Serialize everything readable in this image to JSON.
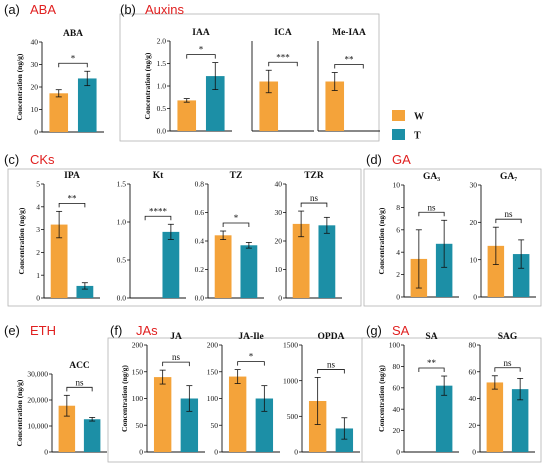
{
  "colors": {
    "W": "#f4a33a",
    "T": "#1c8fa6",
    "title_red": "#e02020",
    "axis": "#111111"
  },
  "legend": [
    {
      "key": "W",
      "label": "W"
    },
    {
      "key": "T",
      "label": "T"
    }
  ],
  "y_axis_label": "Concentration (ng/g)",
  "panels": [
    {
      "id": "a",
      "label": "(a)",
      "title": "ABA"
    },
    {
      "id": "b",
      "label": "(b)",
      "title": "Auxins"
    },
    {
      "id": "c",
      "label": "(c)",
      "title": "CKs"
    },
    {
      "id": "d",
      "label": "(d)",
      "title": "GA"
    },
    {
      "id": "e",
      "label": "(e)",
      "title": "ETH"
    },
    {
      "id": "f",
      "label": "(f)",
      "title": "JAs"
    },
    {
      "id": "g",
      "label": "(g)",
      "title": "SA"
    }
  ],
  "chart_data": [
    {
      "type": "bar",
      "panel": "a",
      "title": "ABA",
      "show_ylabel": true,
      "ylim": [
        0,
        40
      ],
      "yticks": [
        "0",
        "10",
        "20",
        "30",
        "40"
      ],
      "categories": [
        "W",
        "T"
      ],
      "values": [
        17.2,
        23.8
      ],
      "errors": [
        1.6,
        3.2
      ],
      "sig": "*"
    },
    {
      "type": "bar",
      "panel": "b",
      "title": "IAA",
      "show_ylabel": true,
      "ylim": [
        0,
        2.0
      ],
      "yticks": [
        "0.0",
        "0.5",
        "1.0",
        "1.5",
        "2.0"
      ],
      "categories": [
        "W",
        "T"
      ],
      "values": [
        0.68,
        1.22
      ],
      "errors": [
        0.04,
        0.3
      ],
      "sig": "*"
    },
    {
      "type": "bar",
      "panel": "b",
      "title": "ICA",
      "show_ylabel": false,
      "ylim": [
        0,
        8
      ],
      "yticks": [],
      "categories": [
        "W",
        "T"
      ],
      "values": [
        4.4,
        0
      ],
      "errors": [
        1.0,
        0
      ],
      "sig": "***"
    },
    {
      "type": "bar",
      "panel": "b",
      "title": "Me-IAA",
      "show_ylabel": false,
      "ylim": [
        0,
        0.6
      ],
      "yticks": [],
      "categories": [
        "W",
        "T"
      ],
      "values": [
        0.33,
        0
      ],
      "errors": [
        0.06,
        0
      ],
      "sig": "**"
    },
    {
      "type": "bar",
      "panel": "c",
      "title": "IPA",
      "show_ylabel": true,
      "ylim": [
        0,
        5
      ],
      "yticks": [
        "0",
        "1",
        "2",
        "3",
        "4",
        "5"
      ],
      "categories": [
        "W",
        "T"
      ],
      "values": [
        3.22,
        0.53
      ],
      "errors": [
        0.58,
        0.14
      ],
      "sig": "**"
    },
    {
      "type": "bar",
      "panel": "c",
      "title": "Kt",
      "show_ylabel": false,
      "ylim": [
        0,
        1.5
      ],
      "yticks": [
        "0.0",
        "0.5",
        "1.0",
        "1.5"
      ],
      "categories": [
        "W",
        "T"
      ],
      "values": [
        0,
        0.87
      ],
      "errors": [
        0,
        0.1
      ],
      "sig": "****"
    },
    {
      "type": "bar",
      "panel": "c",
      "title": "TZ",
      "show_ylabel": false,
      "ylim": [
        0,
        0.8
      ],
      "yticks": [
        "0.0",
        "0.2",
        "0.4",
        "0.6",
        "0.8"
      ],
      "categories": [
        "W",
        "T"
      ],
      "values": [
        0.44,
        0.37
      ],
      "errors": [
        0.03,
        0.02
      ],
      "sig": "*"
    },
    {
      "type": "bar",
      "panel": "c",
      "title": "TZR",
      "show_ylabel": false,
      "ylim": [
        0,
        40
      ],
      "yticks": [
        "0",
        "10",
        "20",
        "30",
        "40"
      ],
      "categories": [
        "W",
        "T"
      ],
      "values": [
        26,
        25.5
      ],
      "errors": [
        4.5,
        2.8
      ],
      "sig": "ns"
    },
    {
      "type": "bar",
      "panel": "d",
      "title": "GA₃",
      "show_ylabel": true,
      "ylim": [
        0,
        10
      ],
      "yticks": [
        "0",
        "2",
        "4",
        "6",
        "8",
        "10"
      ],
      "categories": [
        "W",
        "T"
      ],
      "values": [
        3.4,
        4.75
      ],
      "errors": [
        2.6,
        2.1
      ],
      "sig": "ns"
    },
    {
      "type": "bar",
      "panel": "d",
      "title": "GA₇",
      "show_ylabel": false,
      "ylim": [
        0,
        30
      ],
      "yticks": [
        "0",
        "10",
        "20",
        "30"
      ],
      "categories": [
        "W",
        "T"
      ],
      "values": [
        13.7,
        11.5
      ],
      "errors": [
        5.0,
        3.8
      ],
      "sig": "ns"
    },
    {
      "type": "bar",
      "panel": "e",
      "title": "ACC",
      "show_ylabel": true,
      "ylim": [
        0,
        30000
      ],
      "yticks": [
        "0",
        "10,000",
        "20,000",
        "30,000"
      ],
      "categories": [
        "W",
        "T"
      ],
      "values": [
        17800,
        12600
      ],
      "errors": [
        4000,
        700
      ],
      "sig": "ns"
    },
    {
      "type": "bar",
      "panel": "f",
      "title": "JA",
      "show_ylabel": true,
      "ylim": [
        0,
        200
      ],
      "yticks": [
        "0",
        "50",
        "100",
        "150",
        "200"
      ],
      "categories": [
        "W",
        "T"
      ],
      "values": [
        140,
        100
      ],
      "errors": [
        13,
        24
      ],
      "sig": "ns"
    },
    {
      "type": "bar",
      "panel": "f",
      "title": "JA-Ile",
      "show_ylabel": false,
      "ylim": [
        0,
        200
      ],
      "yticks": [
        "0",
        "50",
        "100",
        "150",
        "200"
      ],
      "categories": [
        "W",
        "T"
      ],
      "values": [
        141,
        100
      ],
      "errors": [
        13,
        24
      ],
      "sig": "*"
    },
    {
      "type": "bar",
      "panel": "f",
      "title": "OPDA",
      "show_ylabel": false,
      "ylim": [
        0,
        1500
      ],
      "yticks": [
        "0",
        "500",
        "1000",
        "1500"
      ],
      "categories": [
        "W",
        "T"
      ],
      "values": [
        715,
        330
      ],
      "errors": [
        330,
        150
      ],
      "sig": "ns"
    },
    {
      "type": "bar",
      "panel": "g",
      "title": "SA",
      "show_ylabel": true,
      "ylim": [
        0,
        100
      ],
      "yticks": [
        "0",
        "20",
        "40",
        "60",
        "80",
        "100"
      ],
      "categories": [
        "W",
        "T"
      ],
      "values": [
        0,
        62
      ],
      "errors": [
        0,
        9
      ],
      "sig": "**"
    },
    {
      "type": "bar",
      "panel": "g",
      "title": "SAG",
      "show_ylabel": false,
      "ylim": [
        0,
        80
      ],
      "yticks": [
        "0",
        "20",
        "40",
        "60",
        "80"
      ],
      "categories": [
        "W",
        "T"
      ],
      "values": [
        52,
        47
      ],
      "errors": [
        5,
        8
      ],
      "sig": "ns"
    }
  ]
}
